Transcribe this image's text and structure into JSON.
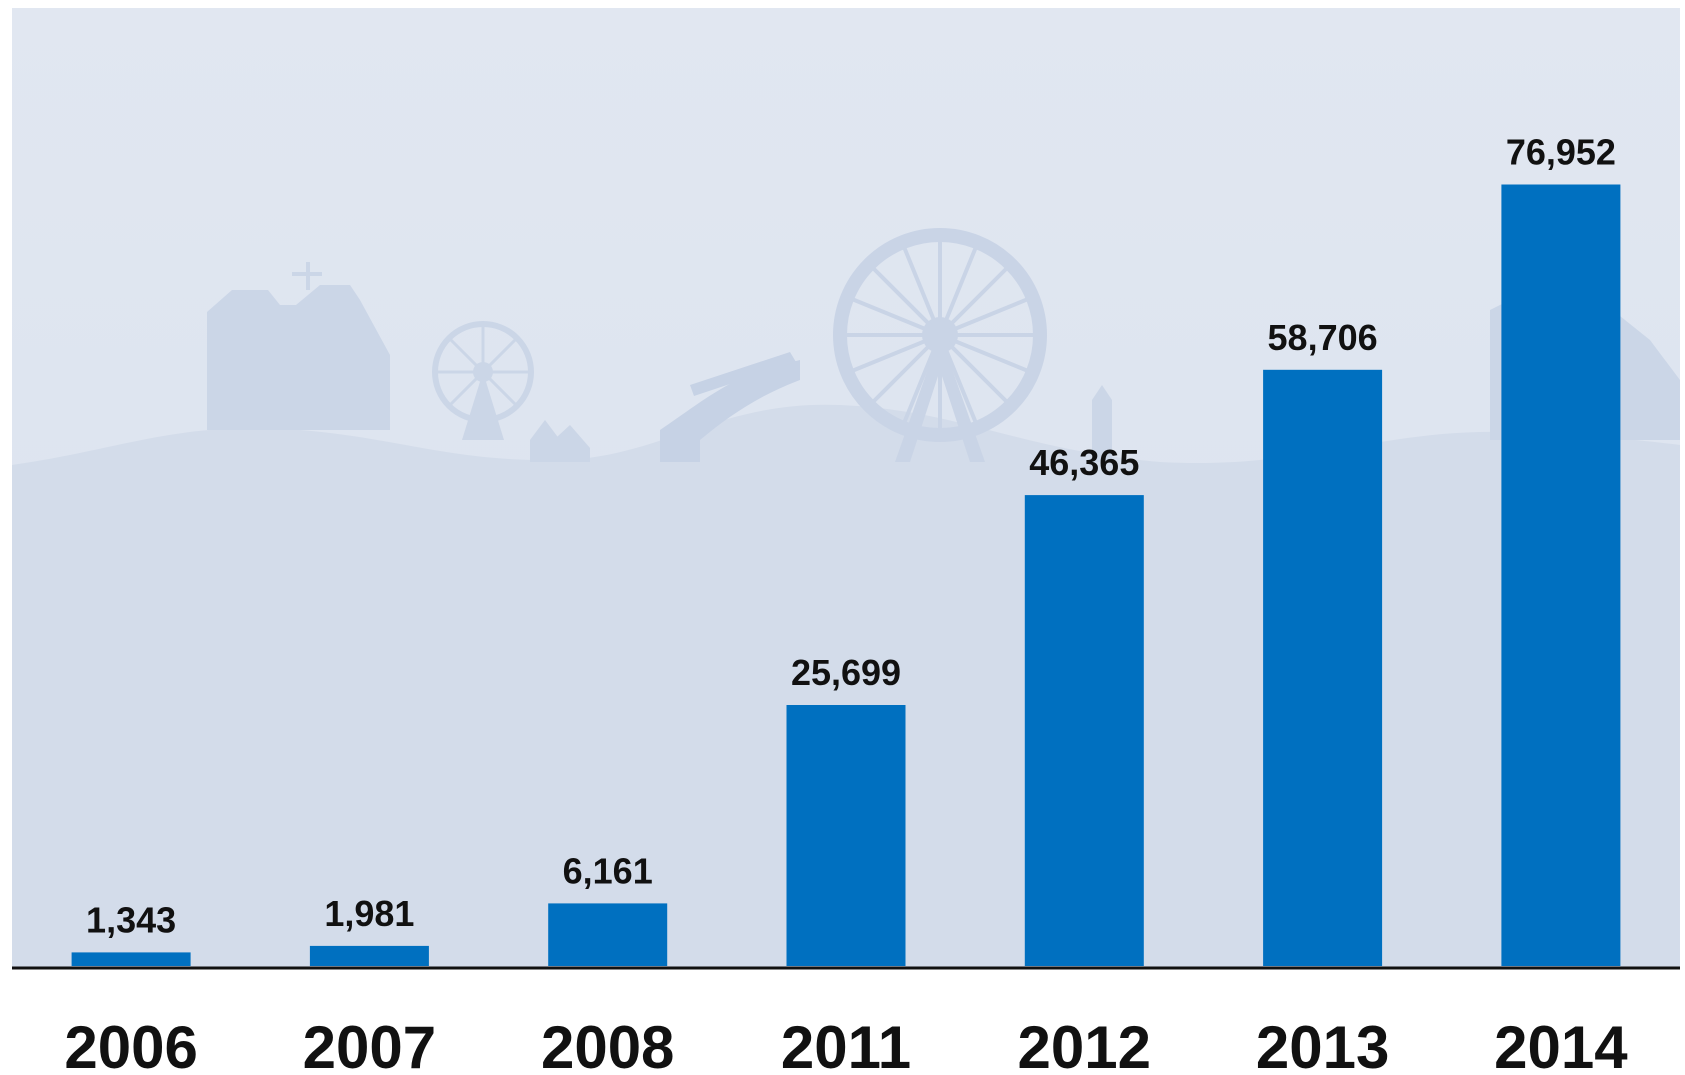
{
  "chart_data": {
    "type": "bar",
    "title": "",
    "xlabel": "",
    "ylabel": "",
    "categories": [
      "2006",
      "2007",
      "2008",
      "2011",
      "2012",
      "2013",
      "2014"
    ],
    "values": [
      1343,
      1981,
      6161,
      25699,
      46365,
      58706,
      76952
    ],
    "value_labels": [
      "1,343",
      "1,981",
      "6,161",
      "25,699",
      "46,365",
      "58,706",
      "76,952"
    ],
    "ylim": [
      0,
      90000
    ],
    "grid": false,
    "legend": "none",
    "colors": {
      "bar": "#0070C0",
      "background": "#DDE4EF",
      "silhouette": "#C9D5E6",
      "axis": "#111111",
      "text": "#111111"
    }
  }
}
